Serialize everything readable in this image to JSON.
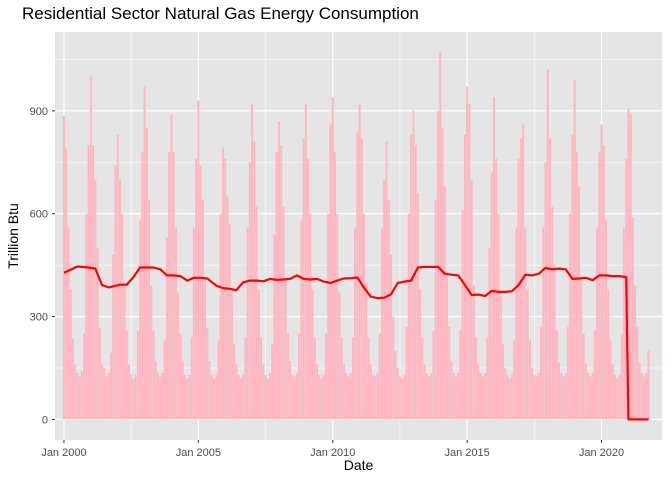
{
  "chart_data": {
    "type": "bar",
    "title": "Residential Sector Natural Gas Energy Consumption",
    "xlabel": "Date",
    "ylabel": "Trillion Btu",
    "xlim": [
      "1999-09",
      "2022-04"
    ],
    "ylim": [
      -60,
      1130
    ],
    "yticks": [
      0,
      300,
      600,
      900
    ],
    "xticks": [
      {
        "label": "Jan 2000",
        "date": "2000-01"
      },
      {
        "label": "Jan 2005",
        "date": "2005-01"
      },
      {
        "label": "Jan 2010",
        "date": "2010-01"
      },
      {
        "label": "Jan 2015",
        "date": "2015-01"
      },
      {
        "label": "Jan 2020",
        "date": "2020-01"
      }
    ],
    "grid": true,
    "background": "#e5e5e5",
    "bar_color": "#ffb6c1",
    "line_color": "#ff0000",
    "series": [
      {
        "kind": "bar",
        "x": [
          "2000-01",
          "2000-02",
          "2000-03",
          "2000-04",
          "2000-05",
          "2000-06",
          "2000-07",
          "2000-08",
          "2000-09",
          "2000-10",
          "2000-11",
          "2000-12",
          "2001-01",
          "2001-02",
          "2001-03",
          "2001-04",
          "2001-05",
          "2001-06",
          "2001-07",
          "2001-08",
          "2001-09",
          "2001-10",
          "2001-11",
          "2001-12",
          "2002-01",
          "2002-02",
          "2002-03",
          "2002-04",
          "2002-05",
          "2002-06",
          "2002-07",
          "2002-08",
          "2002-09",
          "2002-10",
          "2002-11",
          "2002-12",
          "2003-01",
          "2003-02",
          "2003-03",
          "2003-04",
          "2003-05",
          "2003-06",
          "2003-07",
          "2003-08",
          "2003-09",
          "2003-10",
          "2003-11",
          "2003-12",
          "2004-01",
          "2004-02",
          "2004-03",
          "2004-04",
          "2004-05",
          "2004-06",
          "2004-07",
          "2004-08",
          "2004-09",
          "2004-10",
          "2004-11",
          "2004-12",
          "2005-01",
          "2005-02",
          "2005-03",
          "2005-04",
          "2005-05",
          "2005-06",
          "2005-07",
          "2005-08",
          "2005-09",
          "2005-10",
          "2005-11",
          "2005-12",
          "2006-01",
          "2006-02",
          "2006-03",
          "2006-04",
          "2006-05",
          "2006-06",
          "2006-07",
          "2006-08",
          "2006-09",
          "2006-10",
          "2006-11",
          "2006-12",
          "2007-01",
          "2007-02",
          "2007-03",
          "2007-04",
          "2007-05",
          "2007-06",
          "2007-07",
          "2007-08",
          "2007-09",
          "2007-10",
          "2007-11",
          "2007-12",
          "2008-01",
          "2008-02",
          "2008-03",
          "2008-04",
          "2008-05",
          "2008-06",
          "2008-07",
          "2008-08",
          "2008-09",
          "2008-10",
          "2008-11",
          "2008-12",
          "2009-01",
          "2009-02",
          "2009-03",
          "2009-04",
          "2009-05",
          "2009-06",
          "2009-07",
          "2009-08",
          "2009-09",
          "2009-10",
          "2009-11",
          "2009-12",
          "2010-01",
          "2010-02",
          "2010-03",
          "2010-04",
          "2010-05",
          "2010-06",
          "2010-07",
          "2010-08",
          "2010-09",
          "2010-10",
          "2010-11",
          "2010-12",
          "2011-01",
          "2011-02",
          "2011-03",
          "2011-04",
          "2011-05",
          "2011-06",
          "2011-07",
          "2011-08",
          "2011-09",
          "2011-10",
          "2011-11",
          "2011-12",
          "2012-01",
          "2012-02",
          "2012-03",
          "2012-04",
          "2012-05",
          "2012-06",
          "2012-07",
          "2012-08",
          "2012-09",
          "2012-10",
          "2012-11",
          "2012-12",
          "2013-01",
          "2013-02",
          "2013-03",
          "2013-04",
          "2013-05",
          "2013-06",
          "2013-07",
          "2013-08",
          "2013-09",
          "2013-10",
          "2013-11",
          "2013-12",
          "2014-01",
          "2014-02",
          "2014-03",
          "2014-04",
          "2014-05",
          "2014-06",
          "2014-07",
          "2014-08",
          "2014-09",
          "2014-10",
          "2014-11",
          "2014-12",
          "2015-01",
          "2015-02",
          "2015-03",
          "2015-04",
          "2015-05",
          "2015-06",
          "2015-07",
          "2015-08",
          "2015-09",
          "2015-10",
          "2015-11",
          "2015-12",
          "2016-01",
          "2016-02",
          "2016-03",
          "2016-04",
          "2016-05",
          "2016-06",
          "2016-07",
          "2016-08",
          "2016-09",
          "2016-10",
          "2016-11",
          "2016-12",
          "2017-01",
          "2017-02",
          "2017-03",
          "2017-04",
          "2017-05",
          "2017-06",
          "2017-07",
          "2017-08",
          "2017-09",
          "2017-10",
          "2017-11",
          "2017-12",
          "2018-01",
          "2018-02",
          "2018-03",
          "2018-04",
          "2018-05",
          "2018-06",
          "2018-07",
          "2018-08",
          "2018-09",
          "2018-10",
          "2018-11",
          "2018-12",
          "2019-01",
          "2019-02",
          "2019-03",
          "2019-04",
          "2019-05",
          "2019-06",
          "2019-07",
          "2019-08",
          "2019-09",
          "2019-10",
          "2019-11",
          "2019-12",
          "2020-01",
          "2020-02",
          "2020-03",
          "2020-04",
          "2020-05",
          "2020-06",
          "2020-07",
          "2020-08",
          "2020-09",
          "2020-10",
          "2020-11",
          "2020-12",
          "2021-01",
          "2021-02",
          "2021-03",
          "2021-04",
          "2021-05",
          "2021-06",
          "2021-07",
          "2021-08",
          "2021-09",
          "2021-10"
        ],
        "values": [
          885,
          790,
          560,
          380,
          235,
          160,
          135,
          125,
          140,
          250,
          600,
          800,
          1000,
          800,
          700,
          500,
          265,
          160,
          150,
          125,
          135,
          195,
          480,
          740,
          830,
          700,
          600,
          400,
          260,
          160,
          130,
          120,
          130,
          260,
          580,
          780,
          970,
          850,
          640,
          390,
          260,
          170,
          135,
          125,
          135,
          230,
          530,
          780,
          890,
          780,
          560,
          370,
          250,
          170,
          130,
          120,
          130,
          240,
          560,
          760,
          930,
          740,
          640,
          410,
          265,
          170,
          130,
          120,
          130,
          230,
          600,
          790,
          760,
          650,
          570,
          380,
          220,
          160,
          130,
          120,
          130,
          240,
          560,
          750,
          920,
          810,
          620,
          380,
          240,
          160,
          130,
          120,
          135,
          220,
          540,
          780,
          870,
          800,
          620,
          410,
          250,
          170,
          130,
          125,
          135,
          250,
          580,
          820,
          920,
          760,
          600,
          380,
          240,
          160,
          130,
          120,
          130,
          250,
          600,
          860,
          940,
          780,
          600,
          370,
          240,
          160,
          135,
          125,
          135,
          240,
          560,
          840,
          920,
          820,
          600,
          400,
          240,
          160,
          130,
          125,
          135,
          250,
          560,
          700,
          810,
          640,
          480,
          300,
          200,
          150,
          125,
          120,
          130,
          270,
          600,
          830,
          900,
          800,
          660,
          380,
          240,
          160,
          135,
          125,
          135,
          260,
          640,
          900,
          1070,
          850,
          680,
          420,
          270,
          170,
          135,
          125,
          135,
          260,
          610,
          830,
          970,
          920,
          700,
          390,
          240,
          160,
          135,
          125,
          135,
          240,
          500,
          720,
          940,
          760,
          600,
          360,
          220,
          150,
          130,
          120,
          130,
          230,
          560,
          760,
          820,
          860,
          560,
          380,
          230,
          150,
          130,
          125,
          135,
          270,
          560,
          750,
          1020,
          820,
          620,
          450,
          260,
          165,
          135,
          125,
          135,
          270,
          600,
          830,
          990,
          780,
          680,
          410,
          250,
          165,
          135,
          125,
          135,
          260,
          560,
          780,
          860,
          800,
          580,
          380,
          230,
          160,
          130,
          120,
          130,
          250,
          560,
          760,
          905,
          890,
          590,
          390,
          270,
          165,
          135,
          125,
          135,
          200
        ]
      },
      {
        "kind": "line",
        "name": "",
        "x": [
          "2000-01",
          "2000-07",
          "2000-12",
          "2001-03",
          "2001-06",
          "2001-09",
          "2002-02",
          "2002-05",
          "2002-08",
          "2002-11",
          "2003-02",
          "2003-05",
          "2003-08",
          "2003-11",
          "2004-02",
          "2004-05",
          "2004-08",
          "2004-11",
          "2005-02",
          "2005-05",
          "2005-09",
          "2005-12",
          "2006-03",
          "2006-06",
          "2006-09",
          "2006-12",
          "2007-03",
          "2007-06",
          "2007-09",
          "2007-12",
          "2008-03",
          "2008-06",
          "2008-09",
          "2008-12",
          "2009-03",
          "2009-06",
          "2009-09",
          "2009-12",
          "2010-03",
          "2010-06",
          "2010-09",
          "2010-12",
          "2011-03",
          "2011-06",
          "2011-09",
          "2011-12",
          "2012-03",
          "2012-06",
          "2012-09",
          "2012-12",
          "2013-03",
          "2013-06",
          "2013-09",
          "2013-12",
          "2014-03",
          "2014-06",
          "2014-09",
          "2014-12",
          "2015-03",
          "2015-06",
          "2015-09",
          "2015-12",
          "2016-03",
          "2016-06",
          "2016-09",
          "2016-12",
          "2017-03",
          "2017-06",
          "2017-09",
          "2017-12",
          "2018-03",
          "2018-06",
          "2018-09",
          "2018-12",
          "2019-03",
          "2019-06",
          "2019-09",
          "2019-12",
          "2020-03",
          "2020-06",
          "2020-09",
          "2020-12",
          "2021-01",
          "2021-04",
          "2021-07",
          "2021-10"
        ],
        "values": [
          428,
          446,
          443,
          440,
          392,
          385,
          393,
          393,
          415,
          443,
          443,
          443,
          438,
          420,
          420,
          418,
          405,
          413,
          413,
          411,
          390,
          383,
          381,
          377,
          400,
          405,
          405,
          403,
          410,
          407,
          408,
          410,
          420,
          410,
          408,
          410,
          402,
          398,
          405,
          411,
          412,
          414,
          384,
          358,
          354,
          355,
          365,
          398,
          402,
          405,
          443,
          445,
          445,
          445,
          425,
          422,
          420,
          392,
          363,
          364,
          360,
          375,
          372,
          372,
          374,
          392,
          422,
          420,
          425,
          442,
          438,
          440,
          438,
          410,
          411,
          413,
          406,
          420,
          420,
          418,
          418,
          415,
          0,
          0,
          0,
          0
        ]
      }
    ]
  }
}
